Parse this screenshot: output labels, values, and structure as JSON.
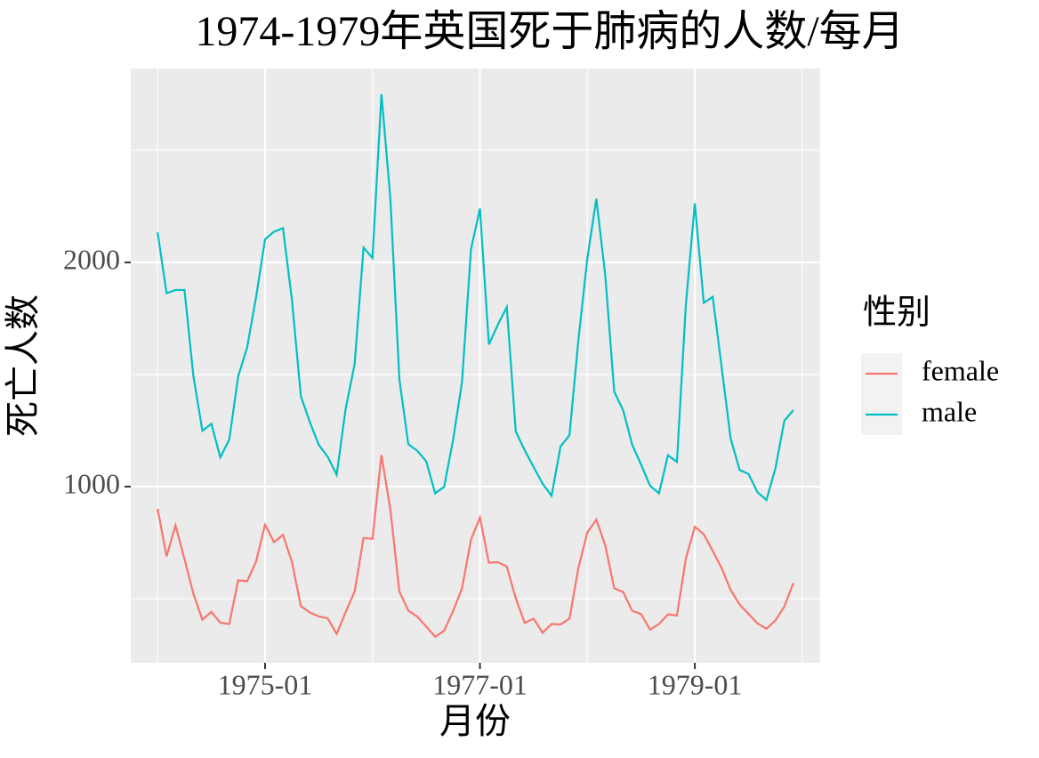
{
  "chart_data": {
    "type": "line",
    "title": "1974-1979年英国死于肺病的人数/每月",
    "x_label": "月份",
    "y_label": "死亡人数",
    "legend_title": "性别",
    "x": [
      "1974-01",
      "1974-02",
      "1974-03",
      "1974-04",
      "1974-05",
      "1974-06",
      "1974-07",
      "1974-08",
      "1974-09",
      "1974-10",
      "1974-11",
      "1974-12",
      "1975-01",
      "1975-02",
      "1975-03",
      "1975-04",
      "1975-05",
      "1975-06",
      "1975-07",
      "1975-08",
      "1975-09",
      "1975-10",
      "1975-11",
      "1975-12",
      "1976-01",
      "1976-02",
      "1976-03",
      "1976-04",
      "1976-05",
      "1976-06",
      "1976-07",
      "1976-08",
      "1976-09",
      "1976-10",
      "1976-11",
      "1976-12",
      "1977-01",
      "1977-02",
      "1977-03",
      "1977-04",
      "1977-05",
      "1977-06",
      "1977-07",
      "1977-08",
      "1977-09",
      "1977-10",
      "1977-11",
      "1977-12",
      "1978-01",
      "1978-02",
      "1978-03",
      "1978-04",
      "1978-05",
      "1978-06",
      "1978-07",
      "1978-08",
      "1978-09",
      "1978-10",
      "1978-11",
      "1978-12",
      "1979-01",
      "1979-02",
      "1979-03",
      "1979-04",
      "1979-05",
      "1979-06",
      "1979-07",
      "1979-08",
      "1979-09",
      "1979-10",
      "1979-11",
      "1979-12"
    ],
    "series": [
      {
        "name": "female",
        "color": "#f8766d",
        "values": [
          901,
          689,
          827,
          677,
          522,
          406,
          441,
          393,
          387,
          582,
          578,
          666,
          830,
          752,
          785,
          664,
          467,
          438,
          421,
          412,
          343,
          440,
          531,
          771,
          767,
          1141,
          896,
          532,
          447,
          420,
          376,
          330,
          357,
          445,
          546,
          764,
          862,
          660,
          663,
          643,
          502,
          392,
          411,
          348,
          387,
          385,
          411,
          638,
          796,
          853,
          737,
          546,
          530,
          446,
          431,
          362,
          387,
          430,
          425,
          679,
          821,
          787,
          713,
          636,
          539,
          474,
          432,
          390,
          366,
          403,
          465,
          570
        ]
      },
      {
        "name": "male",
        "color": "#00bfc4",
        "values": [
          2134,
          1863,
          1877,
          1877,
          1492,
          1249,
          1280,
          1131,
          1209,
          1492,
          1621,
          1846,
          2103,
          2137,
          2153,
          1833,
          1403,
          1288,
          1186,
          1133,
          1053,
          1347,
          1545,
          2066,
          2020,
          2750,
          2283,
          1479,
          1189,
          1160,
          1113,
          970,
          999,
          1208,
          1467,
          2059,
          2240,
          1634,
          1722,
          1801,
          1246,
          1162,
          1087,
          1013,
          959,
          1179,
          1229,
          1655,
          2019,
          2284,
          1942,
          1423,
          1340,
          1187,
          1098,
          1004,
          970,
          1140,
          1110,
          1812,
          2263,
          1820,
          1846,
          1531,
          1215,
          1075,
          1056,
          975,
          940,
          1081,
          1294,
          1341
        ]
      }
    ],
    "xlim": [
      "1973-10",
      "1980-03"
    ],
    "xticks": [
      "1975-01",
      "1977-01",
      "1979-01"
    ],
    "xminorticks": [
      "1974-01",
      "1976-01",
      "1978-01",
      "1980-01"
    ],
    "ylim": [
      214,
      2865
    ],
    "yticks": [
      1000,
      2000
    ],
    "yminorticks": [
      500,
      1500,
      2500
    ],
    "grid": true,
    "legend_position": "right"
  }
}
